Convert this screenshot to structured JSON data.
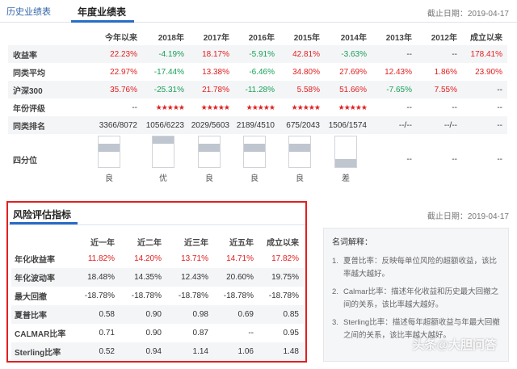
{
  "tabs": {
    "history": "历史业绩表",
    "annual": "年度业绩表"
  },
  "report_date": "截止日期：2019-04-17",
  "annual": {
    "headers": [
      "",
      "今年以来",
      "2018年",
      "2017年",
      "2016年",
      "2015年",
      "2014年",
      "2013年",
      "2012年",
      "成立以来"
    ],
    "rows": [
      {
        "label": "收益率",
        "cells": [
          "22.23%",
          "-4.19%",
          "18.17%",
          "-5.91%",
          "42.81%",
          "-3.63%",
          "--",
          "--",
          "178.41%"
        ],
        "tones": [
          "red",
          "green",
          "red",
          "green",
          "red",
          "green",
          "",
          "",
          "red"
        ]
      },
      {
        "label": "同类平均",
        "cells": [
          "22.97%",
          "-17.44%",
          "13.38%",
          "-6.46%",
          "34.80%",
          "27.69%",
          "12.43%",
          "1.86%",
          "23.90%"
        ],
        "tones": [
          "red",
          "green",
          "red",
          "green",
          "red",
          "red",
          "red",
          "red",
          "red"
        ]
      },
      {
        "label": "沪深300",
        "cells": [
          "35.76%",
          "-25.31%",
          "21.78%",
          "-11.28%",
          "5.58%",
          "51.66%",
          "-7.65%",
          "7.55%",
          "--"
        ],
        "tones": [
          "red",
          "green",
          "red",
          "green",
          "red",
          "red",
          "green",
          "red",
          ""
        ]
      },
      {
        "label": "年份评级",
        "cells": [
          "--",
          "★★★★★",
          "★★★",
          "★★★",
          "★★★★",
          "★",
          "--",
          "--",
          "--"
        ],
        "stars": [
          null,
          5,
          3,
          3,
          4,
          1,
          null,
          null,
          null
        ]
      },
      {
        "label": "同类排名",
        "cells": [
          "3366/8072",
          "1056/6223",
          "2029/5603",
          "2189/4510",
          "675/2043",
          "1506/1574",
          "--/--",
          "--/--",
          "--"
        ]
      }
    ],
    "quartile": {
      "label": "四分位",
      "values": [
        "良",
        "优",
        "良",
        "良",
        "良",
        "差",
        "--",
        "--",
        "--"
      ],
      "levels": [
        2,
        1,
        2,
        2,
        2,
        4,
        null,
        null,
        null
      ]
    }
  },
  "risk": {
    "title": "风险评估指标",
    "headers": [
      "",
      "近一年",
      "近二年",
      "近三年",
      "近五年",
      "成立以来"
    ],
    "rows": [
      {
        "label": "年化收益率",
        "cells": [
          "11.82%",
          "14.20%",
          "13.71%",
          "14.71%",
          "17.82%"
        ],
        "tones": [
          "red",
          "red",
          "red",
          "red",
          "red"
        ]
      },
      {
        "label": "年化波动率",
        "cells": [
          "18.48%",
          "14.35%",
          "12.43%",
          "20.60%",
          "19.75%"
        ]
      },
      {
        "label": "最大回撤",
        "cells": [
          "-18.78%",
          "-18.78%",
          "-18.78%",
          "-18.78%",
          "-18.78%"
        ]
      },
      {
        "label": "夏普比率",
        "cells": [
          "0.58",
          "0.90",
          "0.98",
          "0.69",
          "0.85"
        ]
      },
      {
        "label": "CALMAR比率",
        "cells": [
          "0.71",
          "0.90",
          "0.87",
          "--",
          "0.95"
        ]
      },
      {
        "label": "Sterling比率",
        "cells": [
          "0.52",
          "0.94",
          "1.14",
          "1.06",
          "1.48"
        ]
      }
    ]
  },
  "glossary": {
    "title": "名词解释：",
    "items": [
      {
        "num": "1.",
        "text": "夏普比率：反映每单位风险的超额收益，该比率越大越好。"
      },
      {
        "num": "2.",
        "text": "Calmar比率：描述年化收益和历史最大回撤之间的关系，该比率越大越好。"
      },
      {
        "num": "3.",
        "text": "Sterling比率：描述每年超额收益与年最大回撤之间的关系，该比率越大越好。"
      }
    ]
  },
  "watermark": "头条@大胆问答",
  "colors": {
    "accent": "#2a6cc6",
    "up": "#e02020",
    "down": "#18a058",
    "highlight_border": "#e02020"
  }
}
